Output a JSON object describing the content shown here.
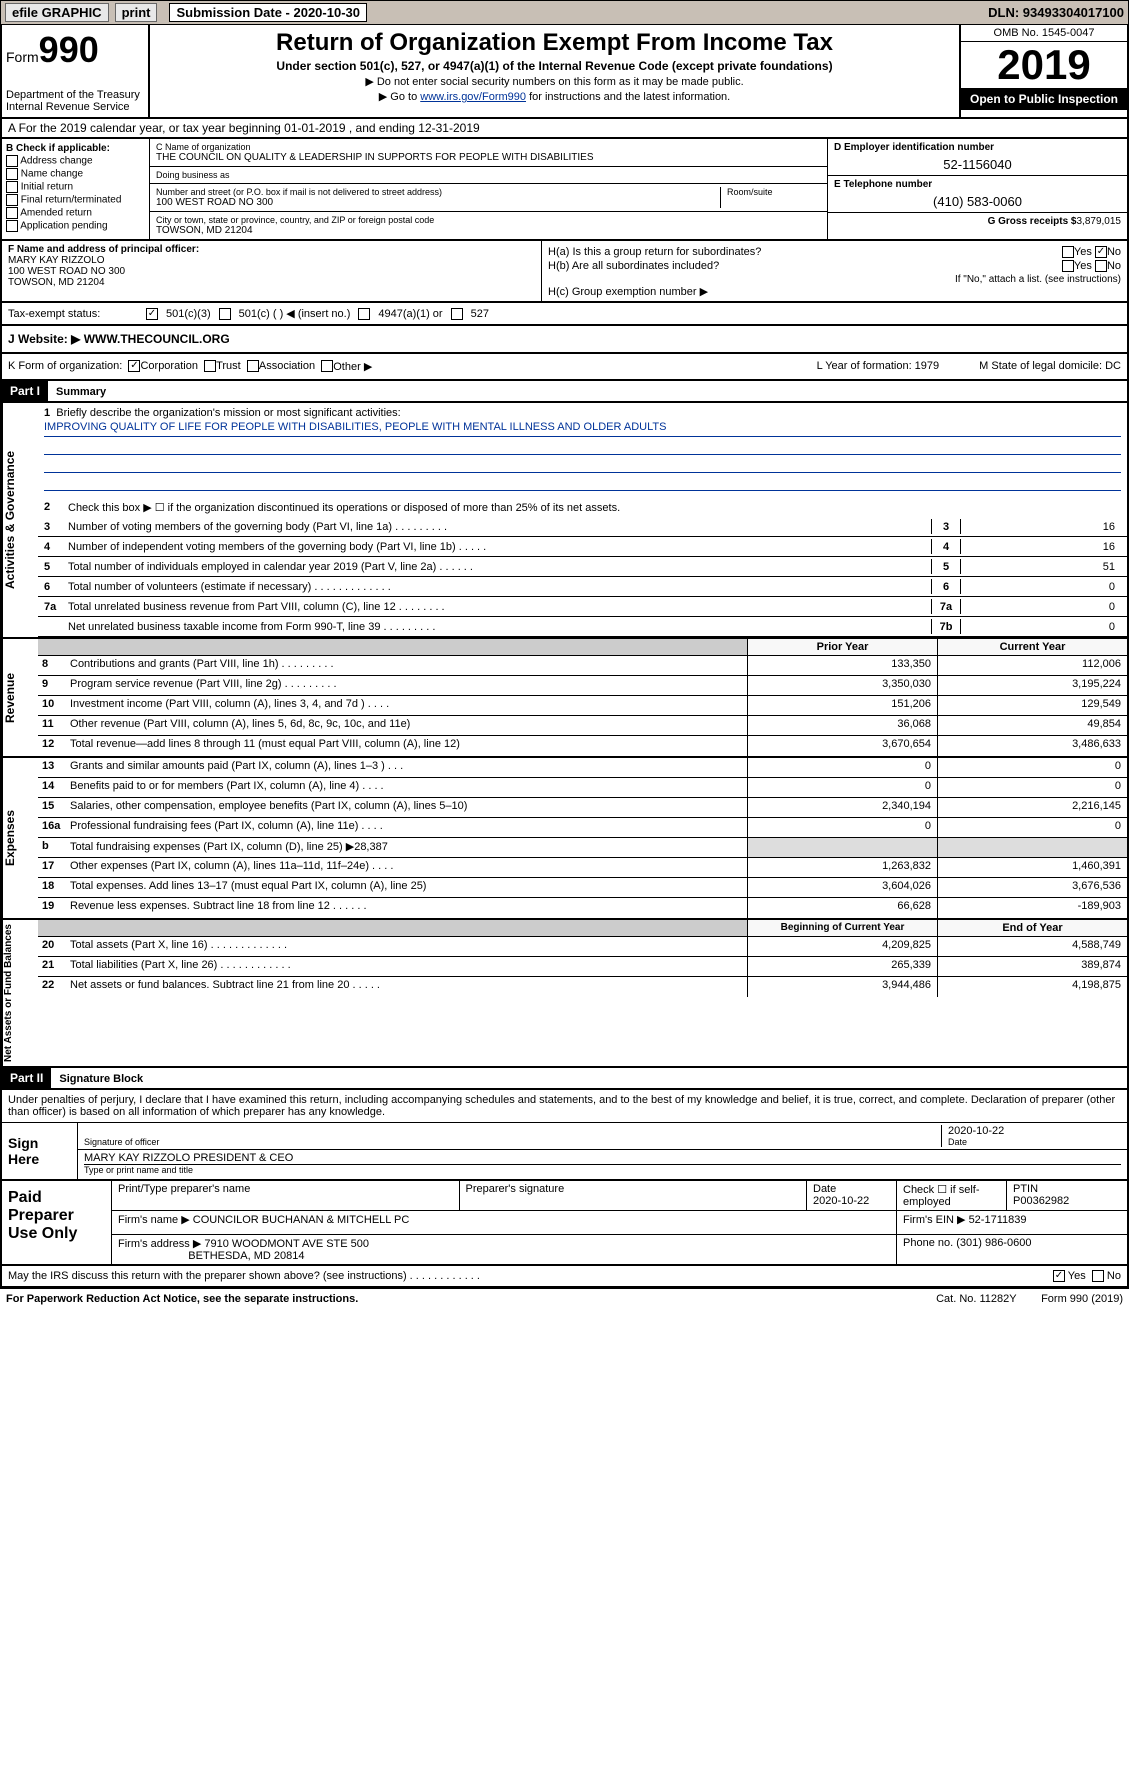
{
  "topbar": {
    "efile": "efile GRAPHIC",
    "print": "print",
    "subdate_label": "Submission Date - 2020-10-30",
    "dln": "DLN: 93493304017100"
  },
  "header": {
    "form_label": "Form",
    "form_num": "990",
    "dept": "Department of the Treasury\nInternal Revenue Service",
    "title": "Return of Organization Exempt From Income Tax",
    "sub": "Under section 501(c), 527, or 4947(a)(1) of the Internal Revenue Code (except private foundations)",
    "note1": "▶ Do not enter social security numbers on this form as it may be made public.",
    "note2_pre": "▶ Go to ",
    "note2_link": "www.irs.gov/Form990",
    "note2_post": " for instructions and the latest information.",
    "omb": "OMB No. 1545-0047",
    "year": "2019",
    "open": "Open to Public Inspection"
  },
  "row_a": "A For the 2019 calendar year, or tax year beginning 01-01-2019   , and ending 12-31-2019",
  "section_b": {
    "header": "B Check if applicable:",
    "items": [
      "Address change",
      "Name change",
      "Initial return",
      "Final return/terminated",
      "Amended return",
      "Application pending"
    ]
  },
  "section_c": {
    "name_lbl": "C Name of organization",
    "name": "THE COUNCIL ON QUALITY & LEADERSHIP IN SUPPORTS FOR PEOPLE WITH DISABILITIES",
    "dba_lbl": "Doing business as",
    "dba": "",
    "street_lbl": "Number and street (or P.O. box if mail is not delivered to street address)",
    "street": "100 WEST ROAD NO 300",
    "suite_lbl": "Room/suite",
    "suite": "",
    "city_lbl": "City or town, state or province, country, and ZIP or foreign postal code",
    "city": "TOWSON, MD  21204"
  },
  "section_d": {
    "ein_lbl": "D Employer identification number",
    "ein": "52-1156040",
    "phone_lbl": "E Telephone number",
    "phone": "(410) 583-0060",
    "gross_lbl": "G Gross receipts $",
    "gross": "3,879,015"
  },
  "section_f": {
    "lbl": "F  Name and address of principal officer:",
    "name": "MARY KAY RIZZOLO",
    "addr1": "100 WEST ROAD NO 300",
    "addr2": "TOWSON, MD  21204"
  },
  "section_h": {
    "ha": "H(a)  Is this a group return for subordinates?",
    "hb": "H(b)  Are all subordinates included?",
    "hb_note": "If \"No,\" attach a list. (see instructions)",
    "hc": "H(c)  Group exemption number ▶"
  },
  "tax_exempt": {
    "lbl": "Tax-exempt status:",
    "opt1": "501(c)(3)",
    "opt2": "501(c) (   ) ◀ (insert no.)",
    "opt3": "4947(a)(1) or",
    "opt4": "527"
  },
  "website": {
    "lbl": "J   Website: ▶",
    "val": "WWW.THECOUNCIL.ORG"
  },
  "k_row": {
    "k": "K Form of organization:",
    "opts": [
      "Corporation",
      "Trust",
      "Association",
      "Other ▶"
    ],
    "l": "L Year of formation: 1979",
    "m": "M State of legal domicile: DC"
  },
  "part1": {
    "hdr": "Part I",
    "title": "Summary",
    "q1": "Briefly describe the organization's mission or most significant activities:",
    "mission": "IMPROVING QUALITY OF LIFE FOR PEOPLE WITH DISABILITIES, PEOPLE WITH MENTAL ILLNESS AND OLDER ADULTS",
    "q2": "Check this box ▶ ☐  if the organization discontinued its operations or disposed of more than 25% of its net assets.",
    "lines_single": [
      {
        "n": "3",
        "d": "Number of voting members of the governing body (Part VI, line 1a)  .   .   .   .   .   .   .   .   .",
        "b": "3",
        "v": "16"
      },
      {
        "n": "4",
        "d": "Number of independent voting members of the governing body (Part VI, line 1b)  .   .   .   .   .",
        "b": "4",
        "v": "16"
      },
      {
        "n": "5",
        "d": "Total number of individuals employed in calendar year 2019 (Part V, line 2a)  .   .   .   .   .   .",
        "b": "5",
        "v": "51"
      },
      {
        "n": "6",
        "d": "Total number of volunteers (estimate if necessary)  .   .   .   .   .   .   .   .   .   .   .   .   .",
        "b": "6",
        "v": "0"
      },
      {
        "n": "7a",
        "d": "Total unrelated business revenue from Part VIII, column (C), line 12  .   .   .   .   .   .   .   .",
        "b": "7a",
        "v": "0"
      },
      {
        "n": "",
        "d": "Net unrelated business taxable income from Form 990-T, line 39  .   .   .   .   .   .   .   .   .",
        "b": "7b",
        "v": "0"
      }
    ],
    "col_hdr1": "Prior Year",
    "col_hdr2": "Current Year",
    "revenue": [
      {
        "n": "8",
        "d": "Contributions and grants (Part VIII, line 1h)  .   .   .   .   .   .   .   .   .",
        "v1": "133,350",
        "v2": "112,006"
      },
      {
        "n": "9",
        "d": "Program service revenue (Part VIII, line 2g)  .   .   .   .   .   .   .   .   .",
        "v1": "3,350,030",
        "v2": "3,195,224"
      },
      {
        "n": "10",
        "d": "Investment income (Part VIII, column (A), lines 3, 4, and 7d )  .   .   .   .",
        "v1": "151,206",
        "v2": "129,549"
      },
      {
        "n": "11",
        "d": "Other revenue (Part VIII, column (A), lines 5, 6d, 8c, 9c, 10c, and 11e)",
        "v1": "36,068",
        "v2": "49,854"
      },
      {
        "n": "12",
        "d": "Total revenue—add lines 8 through 11 (must equal Part VIII, column (A), line 12)",
        "v1": "3,670,654",
        "v2": "3,486,633"
      }
    ],
    "expenses": [
      {
        "n": "13",
        "d": "Grants and similar amounts paid (Part IX, column (A), lines 1–3 )  .   .   .",
        "v1": "0",
        "v2": "0"
      },
      {
        "n": "14",
        "d": "Benefits paid to or for members (Part IX, column (A), line 4)  .   .   .   .",
        "v1": "0",
        "v2": "0"
      },
      {
        "n": "15",
        "d": "Salaries, other compensation, employee benefits (Part IX, column (A), lines 5–10)",
        "v1": "2,340,194",
        "v2": "2,216,145"
      },
      {
        "n": "16a",
        "d": "Professional fundraising fees (Part IX, column (A), line 11e)  .   .   .   .",
        "v1": "0",
        "v2": "0"
      },
      {
        "n": "b",
        "d": "Total fundraising expenses (Part IX, column (D), line 25) ▶28,387",
        "v1": "",
        "v2": "",
        "shade": true
      },
      {
        "n": "17",
        "d": "Other expenses (Part IX, column (A), lines 11a–11d, 11f–24e)  .   .   .   .",
        "v1": "1,263,832",
        "v2": "1,460,391"
      },
      {
        "n": "18",
        "d": "Total expenses. Add lines 13–17 (must equal Part IX, column (A), line 25)",
        "v1": "3,604,026",
        "v2": "3,676,536"
      },
      {
        "n": "19",
        "d": "Revenue less expenses. Subtract line 18 from line 12  .   .   .   .   .   .",
        "v1": "66,628",
        "v2": "-189,903"
      }
    ],
    "na_hdr1": "Beginning of Current Year",
    "na_hdr2": "End of Year",
    "netassets": [
      {
        "n": "20",
        "d": "Total assets (Part X, line 16)  .   .   .   .   .   .   .   .   .   .   .   .   .",
        "v1": "4,209,825",
        "v2": "4,588,749"
      },
      {
        "n": "21",
        "d": "Total liabilities (Part X, line 26)  .   .   .   .   .   .   .   .   .   .   .   .",
        "v1": "265,339",
        "v2": "389,874"
      },
      {
        "n": "22",
        "d": "Net assets or fund balances. Subtract line 21 from line 20  .   .   .   .   .",
        "v1": "3,944,486",
        "v2": "4,198,875"
      }
    ]
  },
  "part2": {
    "hdr": "Part II",
    "title": "Signature Block",
    "decl": "Under penalties of perjury, I declare that I have examined this return, including accompanying schedules and statements, and to the best of my knowledge and belief, it is true, correct, and complete. Declaration of preparer (other than officer) is based on all information of which preparer has any knowledge.",
    "sign_here": "Sign Here",
    "sig_officer": "Signature of officer",
    "sig_date": "2020-10-22",
    "date_lbl": "Date",
    "officer_name": "MARY KAY RIZZOLO  PRESIDENT & CEO",
    "type_name": "Type or print name and title",
    "paid_lbl": "Paid Preparer Use Only",
    "prep_name_lbl": "Print/Type preparer's name",
    "prep_sig_lbl": "Preparer's signature",
    "prep_date_lbl": "Date",
    "prep_date": "2020-10-22",
    "self_emp": "Check ☐ if self-employed",
    "ptin_lbl": "PTIN",
    "ptin": "P00362982",
    "firm_name_lbl": "Firm's name      ▶",
    "firm_name": "COUNCILOR BUCHANAN & MITCHELL PC",
    "firm_ein_lbl": "Firm's EIN ▶",
    "firm_ein": "52-1711839",
    "firm_addr_lbl": "Firm's address ▶",
    "firm_addr1": "7910 WOODMONT AVE STE 500",
    "firm_addr2": "BETHESDA, MD  20814",
    "firm_phone_lbl": "Phone no.",
    "firm_phone": "(301) 986-0600",
    "discuss": "May the IRS discuss this return with the preparer shown above? (see instructions)  .   .   .   .   .   .   .   .   .   .   .   ."
  },
  "footer": {
    "left": "For Paperwork Reduction Act Notice, see the separate instructions.",
    "mid": "Cat. No. 11282Y",
    "right": "Form 990 (2019)"
  },
  "vert_labels": {
    "gov": "Activities & Governance",
    "rev": "Revenue",
    "exp": "Expenses",
    "na": "Net Assets or Fund Balances"
  }
}
